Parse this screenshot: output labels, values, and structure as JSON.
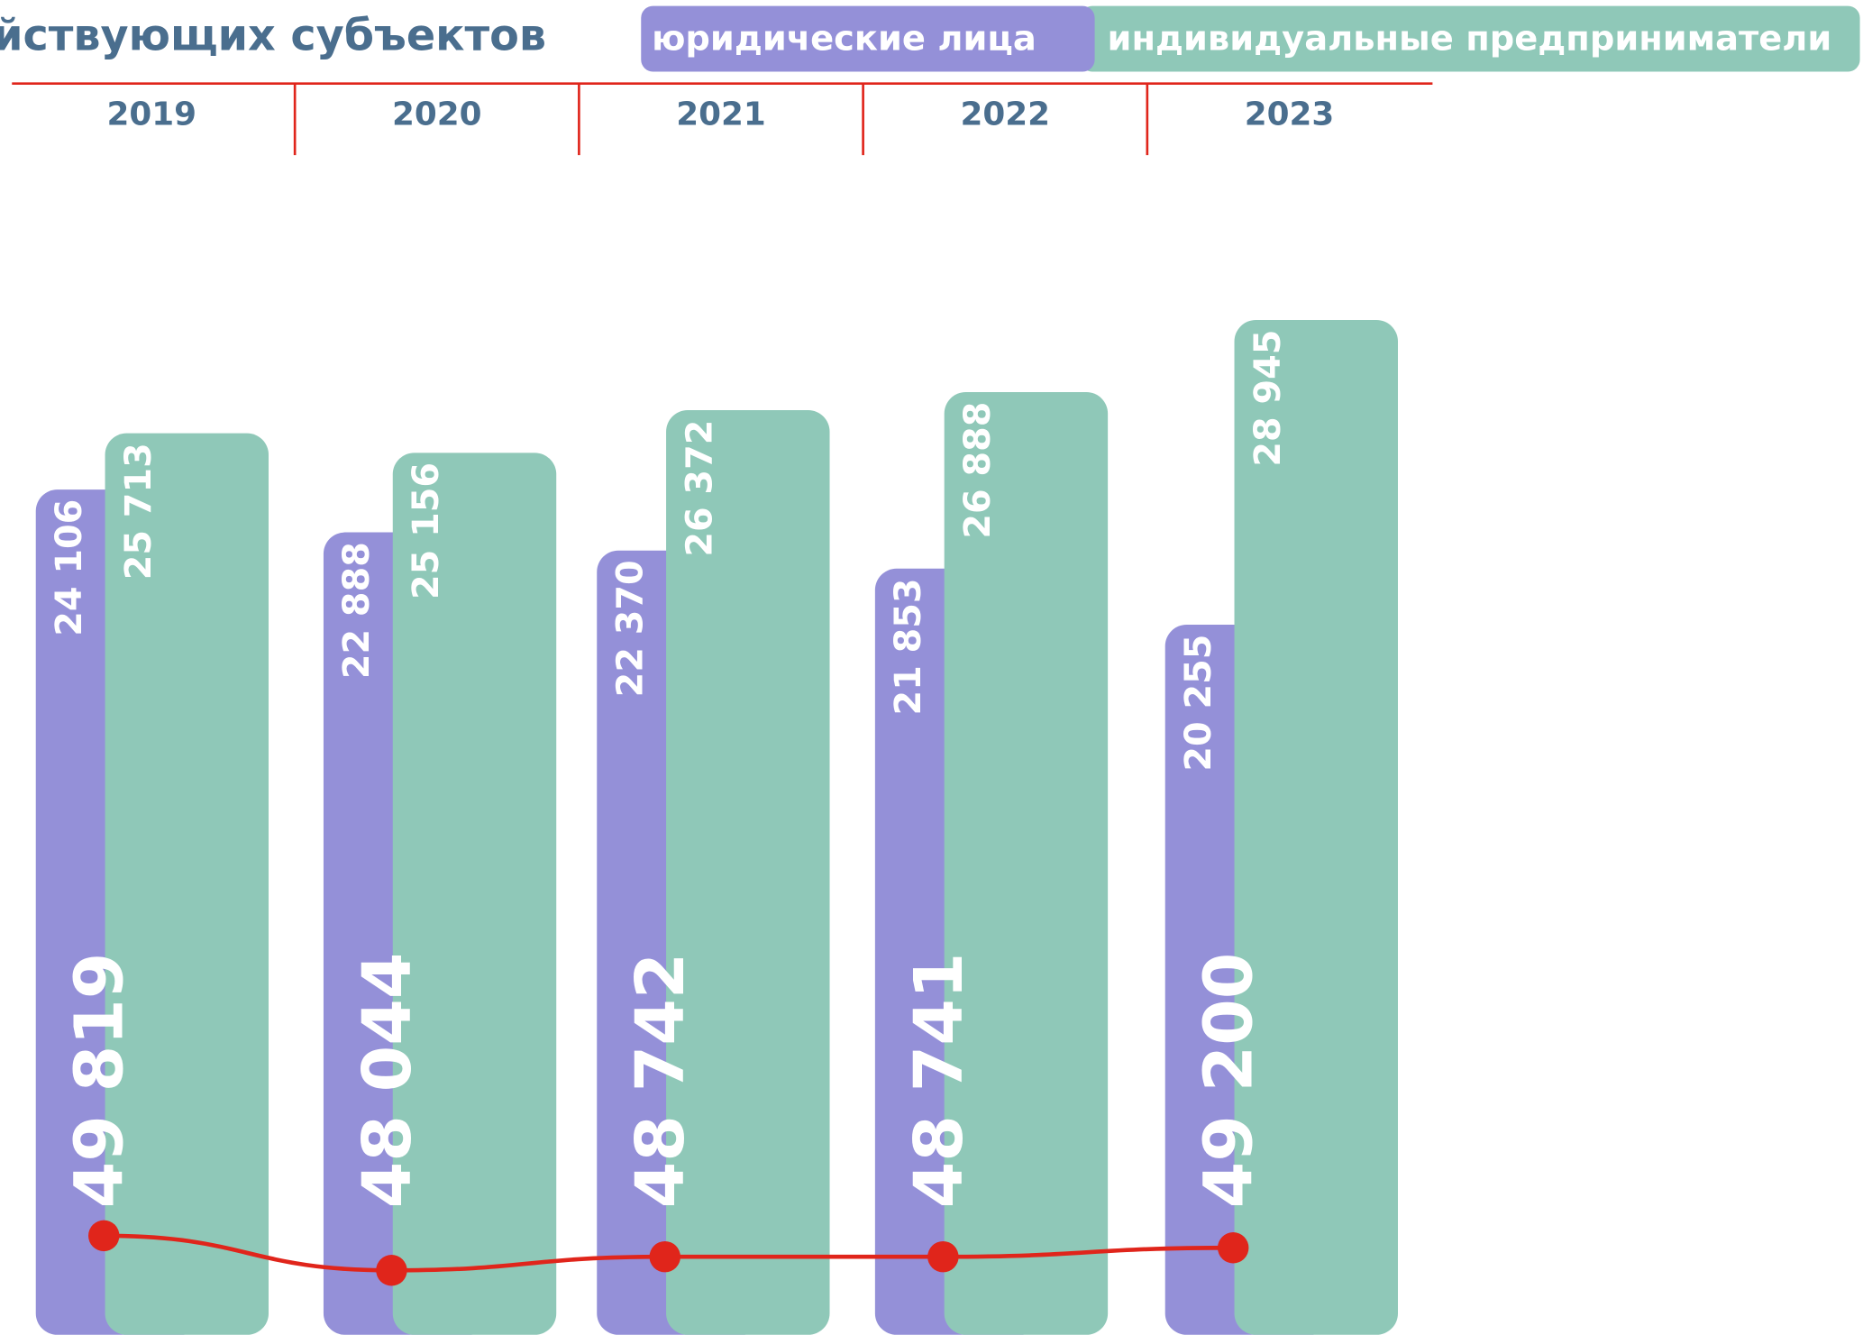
{
  "chart_data": {
    "type": "bar",
    "title": "йствующих субъектов",
    "categories": [
      "2019",
      "2020",
      "2021",
      "2022",
      "2023"
    ],
    "series": [
      {
        "name": "юридические лица",
        "color": "#9490d8",
        "values": [
          24106,
          22888,
          22370,
          21853,
          20255
        ],
        "value_labels": [
          "24 106",
          "22 888",
          "22 370",
          "21 853",
          "20 255"
        ]
      },
      {
        "name": "индивидуальные предприниматели",
        "color": "#8fc8b8",
        "values": [
          25713,
          25156,
          26372,
          26888,
          28945
        ],
        "value_labels": [
          "25 713",
          "25 156",
          "26 372",
          "26 888",
          "28 945"
        ]
      }
    ],
    "totals": {
      "color": "#e0251b",
      "values": [
        49819,
        48044,
        48742,
        48741,
        49200
      ],
      "value_labels": [
        "49 819",
        "48 044",
        "48 742",
        "48 741",
        "49 200"
      ]
    }
  }
}
